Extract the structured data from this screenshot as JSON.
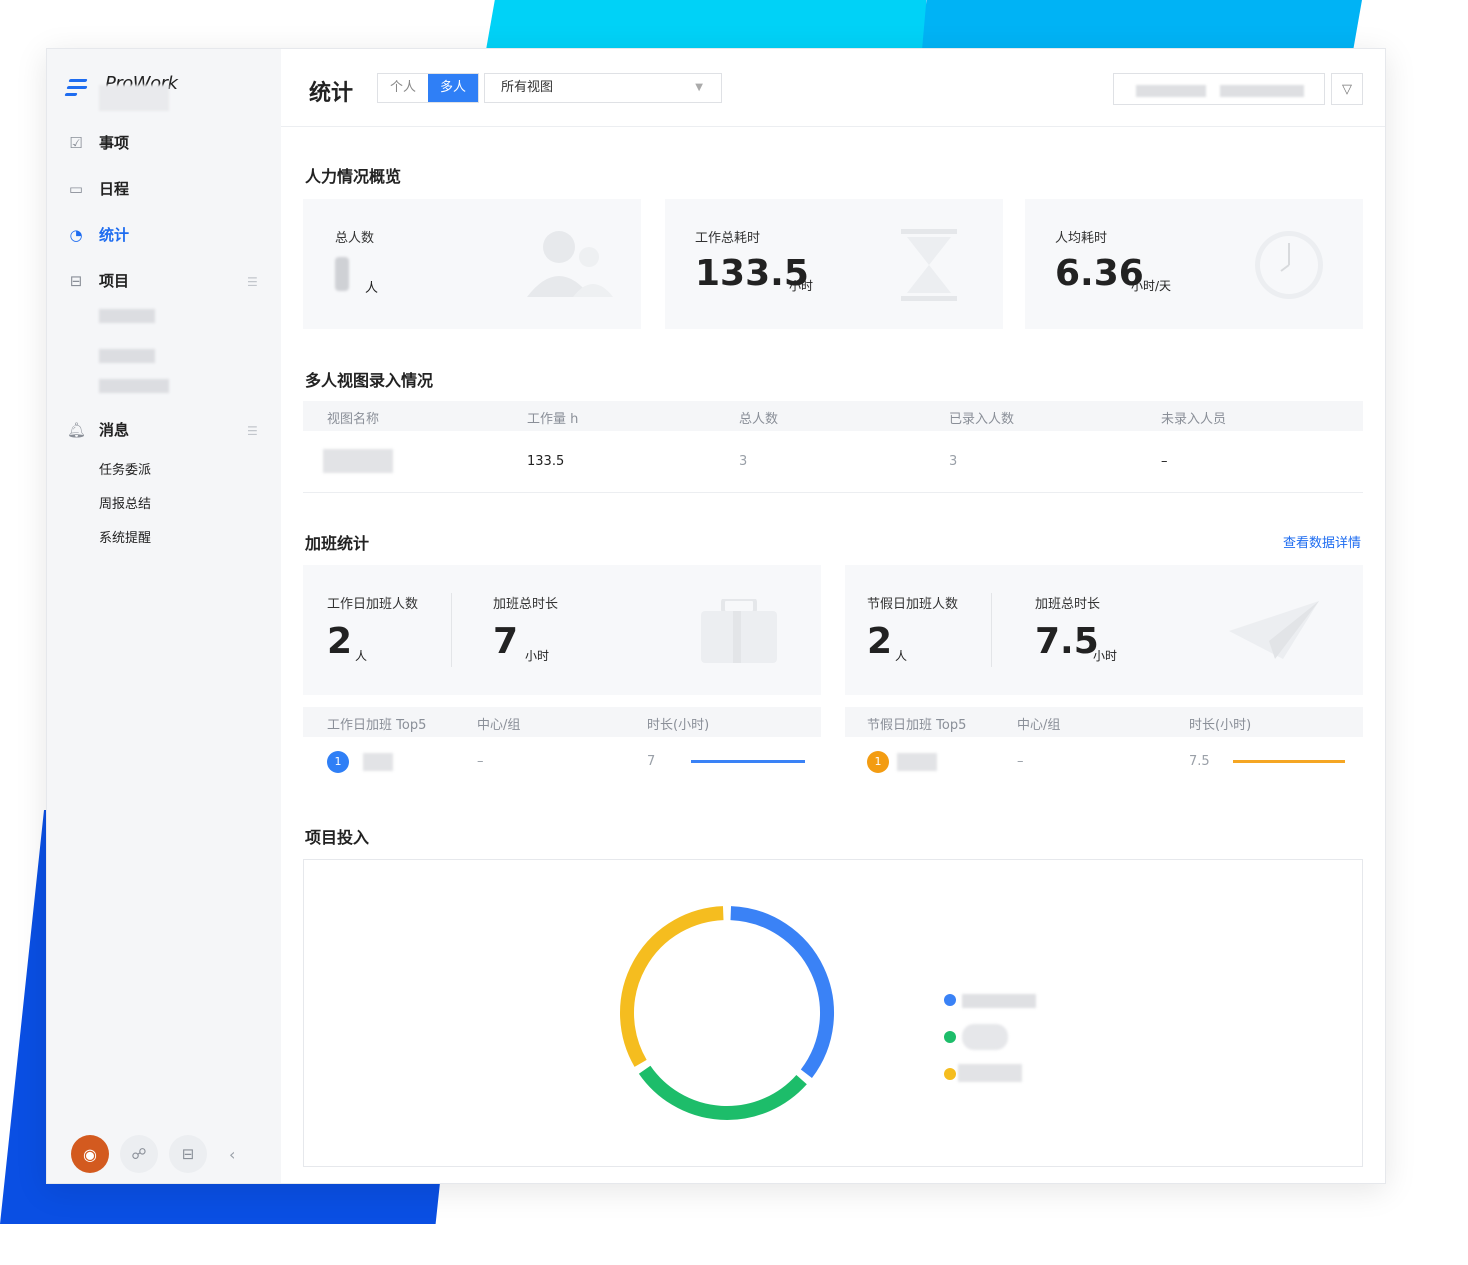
{
  "app": {
    "name": "ProWork"
  },
  "sidebar": {
    "items": [
      {
        "label": "事项",
        "icon": "checkbox-icon"
      },
      {
        "label": "日程",
        "icon": "calendar-icon"
      },
      {
        "label": "统计",
        "icon": "pie-chart-icon"
      },
      {
        "label": "项目",
        "icon": "inbox-icon"
      },
      {
        "label": "消息",
        "icon": "bell-icon"
      }
    ],
    "messages": [
      "任务委派",
      "周报总结",
      "系统提醒"
    ]
  },
  "header": {
    "title": "统计",
    "scope_tabs": [
      "个人",
      "多人"
    ],
    "active_scope": "多人",
    "view_select": "所有视图"
  },
  "overview": {
    "title": "人力情况概览",
    "total_people_label": "总人数",
    "total_people_unit": "人",
    "total_hours_label": "工作总耗时",
    "total_hours_value": "133.5",
    "total_hours_unit": "小时",
    "avg_hours_label": "人均耗时",
    "avg_hours_value": "6.36",
    "avg_hours_unit": "小时/天"
  },
  "entry": {
    "title": "多人视图录入情况",
    "columns": [
      "视图名称",
      "工作量 h",
      "总人数",
      "已录入人数",
      "未录入人员"
    ],
    "row": {
      "workload": "133.5",
      "total": "3",
      "entered": "3",
      "missing": "–"
    }
  },
  "overtime": {
    "title": "加班统计",
    "detail_link": "查看数据详情",
    "workday_people_label": "工作日加班人数",
    "workday_people_value": "2",
    "people_unit": "人",
    "workday_hours_label": "加班总时长",
    "workday_hours_value": "7",
    "hours_unit": "小时",
    "holiday_people_label": "节假日加班人数",
    "holiday_people_value": "2",
    "holiday_hours_label": "加班总时长",
    "holiday_hours_value": "7.5",
    "workday_table": {
      "columns": [
        "工作日加班 Top5",
        "中心/组",
        "时长(小时)"
      ],
      "rank": "1",
      "group": "–",
      "hours": "7"
    },
    "holiday_table": {
      "columns": [
        "节假日加班 Top5",
        "中心/组",
        "时长(小时)"
      ],
      "rank": "1",
      "group": "–",
      "hours": "7.5"
    }
  },
  "project": {
    "title": "项目投入"
  },
  "colors": {
    "accent": "#2f7ff6",
    "blue": "#3a82f6",
    "green": "#1dbd6a",
    "yellow": "#f5bd1f",
    "orange": "#f39c12"
  },
  "chart_data": {
    "type": "pie",
    "series": [
      {
        "values": [
          0.36,
          0.3,
          0.34
        ],
        "colors": [
          "#3a82f6",
          "#1dbd6a",
          "#f5bd1f"
        ]
      }
    ]
  }
}
